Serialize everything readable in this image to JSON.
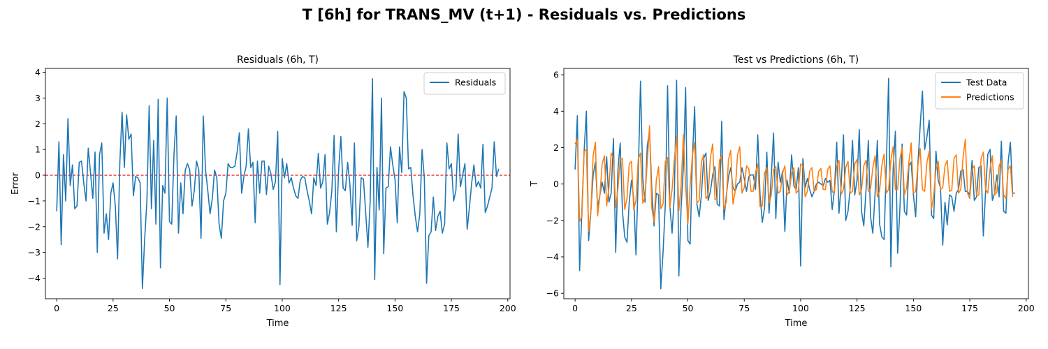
{
  "suptitle": "T [6h] for TRANS_MV (t+1) - Residuals vs. Predictions",
  "chart_data": [
    {
      "type": "line",
      "title": "Residuals (6h, T)",
      "xlabel": "Time",
      "ylabel": "Error",
      "xlim": [
        -5,
        201
      ],
      "ylim": [
        -4.8,
        4.15
      ],
      "xticks": [
        0,
        25,
        50,
        75,
        100,
        125,
        150,
        175,
        200
      ],
      "yticks": [
        -4,
        -3,
        -2,
        -1,
        0,
        1,
        2,
        3,
        4
      ],
      "legend": "upper right",
      "reference_line": {
        "y": 0,
        "color": "#ff0000",
        "style": "dashed"
      },
      "series": [
        {
          "name": "Residuals",
          "color": "#1f77b4",
          "values": [
            -1.4,
            1.3,
            -2.7,
            0.8,
            -1.0,
            2.2,
            -0.4,
            0.4,
            -1.3,
            -1.2,
            0.5,
            0.55,
            -0.3,
            -1.0,
            1.05,
            0.1,
            -0.9,
            0.9,
            -3.0,
            0.8,
            1.25,
            -2.25,
            -1.5,
            -2.5,
            -0.7,
            -0.3,
            -1.2,
            -3.25,
            0.5,
            2.45,
            0.3,
            2.35,
            1.4,
            1.6,
            -0.8,
            -0.05,
            -0.1,
            -0.3,
            -4.4,
            -2.5,
            -1.0,
            2.7,
            -1.3,
            1.35,
            -1.9,
            2.95,
            -3.6,
            -0.4,
            -0.7,
            3.0,
            -1.8,
            -1.9,
            0.8,
            2.3,
            -2.25,
            -0.3,
            -1.5,
            0.2,
            0.45,
            0.2,
            -1.2,
            -0.6,
            0.55,
            0.2,
            -2.45,
            2.3,
            0.2,
            -0.6,
            -1.5,
            -0.9,
            0.2,
            -0.1,
            -1.9,
            -2.45,
            -1.0,
            -0.7,
            0.45,
            0.3,
            0.3,
            0.35,
            0.9,
            1.65,
            -0.7,
            -0.05,
            0.35,
            1.8,
            0.3,
            0.5,
            -1.85,
            0.55,
            -0.7,
            0.55,
            0.55,
            -0.75,
            0.35,
            0.05,
            -0.55,
            -0.25,
            1.7,
            -4.25,
            0.65,
            -0.1,
            0.45,
            -0.3,
            -0.1,
            -0.5,
            -0.8,
            -0.9,
            -0.2,
            -0.05,
            -0.1,
            -0.6,
            -1.0,
            -1.5,
            -0.1,
            -0.4,
            0.85,
            -0.5,
            -0.25,
            0.8,
            -1.9,
            -1.45,
            -0.6,
            1.55,
            -2.2,
            0.2,
            1.5,
            -0.5,
            -0.6,
            0.5,
            -0.35,
            -1.95,
            1.25,
            -2.55,
            -2.0,
            -0.1,
            -0.15,
            -1.45,
            -2.8,
            -1.0,
            3.75,
            -4.05,
            0.3,
            -1.35,
            3.0,
            -3.05,
            -0.5,
            -0.45,
            1.1,
            0.4,
            -0.15,
            -1.85,
            1.1,
            0.1,
            3.25,
            3.0,
            0.25,
            0.3,
            -0.8,
            -1.6,
            -2.2,
            -1.5,
            1.0,
            -0.1,
            -4.2,
            -2.35,
            -2.2,
            -0.85,
            -2.15,
            -1.6,
            -1.4,
            -2.25,
            -1.9,
            1.25,
            0.25,
            0.45,
            -1.0,
            -0.6,
            1.6,
            -0.45,
            0.0,
            0.45,
            -2.1,
            -1.25,
            -0.3,
            0.4,
            -0.45,
            -0.25,
            -0.5,
            1.2,
            -1.45,
            -1.2,
            -0.85,
            -0.5,
            1.3,
            -0.05,
            0.25
          ]
        }
      ]
    },
    {
      "type": "line",
      "title": "Test vs Predictions (6h, T)",
      "xlabel": "Time",
      "ylabel": "T",
      "xlim": [
        -5,
        201
      ],
      "ylim": [
        -6.3,
        6.35
      ],
      "xticks": [
        0,
        25,
        50,
        75,
        100,
        125,
        150,
        175,
        200
      ],
      "yticks": [
        -6,
        -4,
        -2,
        0,
        2,
        4,
        6
      ],
      "legend": "upper right",
      "series": [
        {
          "name": "Test Data",
          "color": "#1f77b4",
          "values": [
            0.8,
            3.75,
            -4.75,
            -1.5,
            1.8,
            4.0,
            -3.1,
            -1.5,
            0.5,
            1.2,
            -1.3,
            -0.6,
            0.1,
            -0.5,
            1.5,
            -1.0,
            -0.5,
            2.5,
            -3.75,
            0.8,
            2.25,
            -1.5,
            -2.9,
            -3.2,
            -1.0,
            0.2,
            -0.8,
            -3.9,
            0.5,
            5.65,
            0.3,
            -1.0,
            2.1,
            2.9,
            -0.3,
            -2.3,
            -0.5,
            -0.6,
            -5.75,
            -3.75,
            -1.1,
            5.4,
            -1.2,
            -2.7,
            -0.6,
            5.7,
            -5.05,
            -1.3,
            0.9,
            5.3,
            -3.1,
            -3.3,
            1.4,
            4.25,
            -1.1,
            -1.8,
            -0.6,
            1.4,
            1.7,
            -0.9,
            -0.4,
            0.5,
            0.95,
            -1.1,
            -1.2,
            3.45,
            -1.95,
            -0.7,
            0.4,
            0.9,
            -0.2,
            -0.4,
            0.0,
            0.1,
            0.9,
            0.3,
            -0.4,
            0.4,
            0.5,
            0.5,
            -0.3,
            2.7,
            -0.6,
            -2.1,
            -1.3,
            1.75,
            -1.6,
            0.5,
            2.8,
            -1.9,
            1.2,
            0.1,
            0.7,
            -2.6,
            0.2,
            -0.5,
            1.6,
            -0.1,
            -0.3,
            0.9,
            -4.5,
            1.4,
            -0.2,
            0.3,
            -0.3,
            -0.7,
            -0.4,
            0.0,
            0.1,
            0.0,
            -0.1,
            0.3,
            0.1,
            0.2,
            -1.4,
            -0.3,
            2.3,
            -1.6,
            0.0,
            2.7,
            -2.0,
            -1.5,
            -0.2,
            2.4,
            -0.6,
            0.2,
            3.0,
            -1.5,
            -2.3,
            -0.3,
            2.4,
            -1.8,
            -2.7,
            -0.5,
            2.4,
            -2.2,
            -2.9,
            -3.05,
            1.1,
            5.8,
            -4.55,
            0.8,
            2.9,
            -3.8,
            -1.4,
            2.2,
            -1.5,
            -1.7,
            1.0,
            1.2,
            -0.6,
            -1.8,
            1.1,
            3.2,
            5.1,
            1.9,
            2.6,
            3.5,
            -1.7,
            -1.9,
            1.8,
            0.2,
            -0.2,
            -3.35,
            -1.0,
            -2.25,
            -0.6,
            -0.7,
            -1.5,
            -0.5,
            -0.3,
            0.7,
            0.8,
            -0.4,
            -0.4,
            -0.6,
            1.3,
            -0.9,
            -0.7,
            0.9,
            1.0,
            -2.85,
            -0.4,
            1.65,
            1.9,
            -0.9,
            -0.5,
            0.5,
            -0.7,
            2.35,
            -1.5,
            -1.6,
            1.2,
            2.3,
            -0.5,
            -0.5
          ]
        },
        {
          "name": "Predictions",
          "color": "#ff7f0e",
          "values": [
            2.2,
            2.45,
            -2.05,
            -1.8,
            1.8,
            1.9,
            -2.6,
            -1.5,
            1.55,
            2.3,
            -1.75,
            -0.6,
            1.1,
            1.55,
            -1.2,
            -0.2,
            1.7,
            1.4,
            -1.3,
            -0.25,
            1.35,
            1.4,
            -1.4,
            -0.8,
            1.1,
            1.25,
            -1.4,
            -0.9,
            1.35,
            1.7,
            -1.05,
            -0.7,
            1.2,
            3.2,
            -1.3,
            -2.1,
            0.2,
            0.95,
            -1.35,
            -1.1,
            1.25,
            1.45,
            -1.3,
            -0.3,
            1.35,
            2.65,
            -1.45,
            -0.1,
            2.7,
            -0.1,
            -2.2,
            -0.1,
            1.55,
            2.3,
            -1.05,
            -0.9,
            1.2,
            1.6,
            -0.8,
            -0.6,
            1.45,
            2.2,
            -0.85,
            -0.8,
            1.3,
            1.55,
            -1.4,
            -1.0,
            1.35,
            1.85,
            -1.1,
            -0.4,
            1.6,
            2.05,
            -0.5,
            -0.2,
            1.0,
            0.85,
            -0.4,
            -0.4,
            0.65,
            1.1,
            -1.25,
            -1.2,
            0.6,
            0.9,
            -1.05,
            -0.6,
            0.8,
            0.95,
            -0.5,
            -0.4,
            0.6,
            1.0,
            -0.6,
            -0.4,
            0.6,
            0.9,
            -0.5,
            -0.35,
            1.1,
            1.0,
            -0.7,
            -0.4,
            0.7,
            0.9,
            -0.4,
            -0.3,
            0.7,
            0.85,
            -0.3,
            -0.3,
            0.8,
            1.0,
            -0.45,
            -0.4,
            1.0,
            1.3,
            -0.55,
            -0.3,
            0.9,
            1.25,
            -0.5,
            -0.4,
            1.1,
            1.35,
            -0.6,
            -0.3,
            1.0,
            1.3,
            -0.4,
            -0.25,
            0.9,
            1.55,
            -0.7,
            -0.4,
            1.0,
            1.65,
            -0.5,
            -0.3,
            1.3,
            2.05,
            -0.3,
            -0.3,
            1.35,
            2.0,
            -0.6,
            -0.2,
            1.2,
            2.25,
            -0.5,
            -0.4,
            1.0,
            1.95,
            -0.3,
            -0.4,
            1.2,
            1.8,
            -1.4,
            -0.6,
            0.8,
            1.25,
            -0.3,
            -0.2,
            1.0,
            1.3,
            -0.4,
            -0.35,
            1.4,
            1.6,
            -0.5,
            -0.3,
            1.45,
            2.45,
            -0.5,
            -0.8,
            0.8,
            1.0,
            -0.65,
            -0.6,
            1.4,
            1.75,
            -0.3,
            -0.5,
            0.85,
            1.55,
            -0.6,
            -0.45,
            1.0,
            1.3,
            -0.6,
            -0.8,
            0.8,
            1.0,
            -0.7
          ]
        }
      ]
    }
  ]
}
